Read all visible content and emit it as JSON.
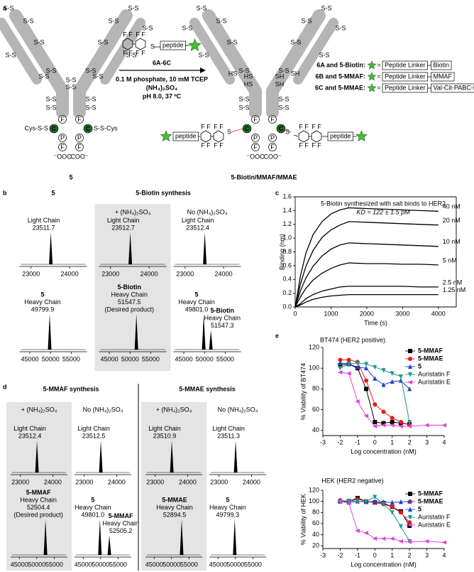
{
  "panel_labels": [
    "a",
    "b",
    "c",
    "d",
    "e"
  ],
  "scheme": {
    "antibody": "5",
    "product": "5-Biotin/MMAF/MMAE",
    "reagent": "6A-6C",
    "conditions": [
      "0.1 M phosphate, 10 mM TCEP",
      "(NH₄)₂SO₄",
      "pH 8.0, 37 ºC"
    ],
    "condition_colors": [
      "#000000",
      "#e8322b",
      "#000000"
    ],
    "peptide": "peptide",
    "fluorine": "F",
    "disulfide": "S-S",
    "sulfur": "S",
    "thiol_left": "HS",
    "thiol_right": "SH",
    "cys_left": "Cys-S-S",
    "cys_right": "S-S-Cys",
    "carboxyl_left": "⁻OOC",
    "carboxyl_right": "COO⁻",
    "residues": {
      "f": "F",
      "p": "P",
      "c": "C"
    },
    "equals": "=",
    "legend": [
      {
        "name": "6A and 5-Biotin:",
        "linker": "Peptide Linker",
        "payload": "Biotin"
      },
      {
        "name": "6B and 5-MMAF:",
        "linker": "Peptide Linker",
        "payload": "MMAF"
      },
      {
        "name": "6C and 5-MMAE:",
        "linker": "Peptide Linker",
        "payload": "Val-Cit-PABC-MMAE"
      }
    ]
  },
  "b": {
    "titles": [
      "5",
      "5-Biotin synthesis"
    ],
    "columns": [
      {
        "shaded": false,
        "spectra": [
          {
            "xlim": [
              22700,
              24450
            ],
            "xticks": [
              23000,
              24000
            ],
            "peaks": [
              {
                "lines": [
                  "Light Chain"
                ],
                "mass": 23511.7,
                "color": "#000000"
              }
            ]
          },
          {
            "xlim": [
              42500,
              58800
            ],
            "xticks": [
              45000,
              50000,
              55000
            ],
            "peaks": [
              {
                "lines": [
                  "5",
                  "Heavy Chain"
                ],
                "mass": 49799.9,
                "color": "#000000"
              }
            ]
          }
        ]
      },
      {
        "shaded": true,
        "condition": "+ (NH₄)₂SO₄",
        "condition_color": "#e8322b",
        "spectra": [
          {
            "xlim": [
              22700,
              24450
            ],
            "xticks": [
              23000,
              24000
            ],
            "peaks": [
              {
                "lines": [
                  "Light Chain"
                ],
                "mass": 23512.7,
                "color": "#e8322b"
              }
            ]
          },
          {
            "xlim": [
              42500,
              58800
            ],
            "xticks": [
              45000,
              50000,
              55000
            ],
            "peaks": [
              {
                "lines": [
                  "5-Biotin",
                  "Heavy Chain"
                ],
                "mass": 51547.5,
                "note": "(Desired product)",
                "color": "#e8322b"
              }
            ]
          }
        ]
      },
      {
        "shaded": false,
        "condition": "No (NH₄)₂SO₄",
        "condition_color": "#000000",
        "spectra": [
          {
            "xlim": [
              22700,
              24450
            ],
            "xticks": [
              23000,
              24000
            ],
            "peaks": [
              {
                "lines": [
                  "Light Chain"
                ],
                "mass": 23512.4,
                "color": "#000000"
              }
            ]
          },
          {
            "xlim": [
              42500,
              58800
            ],
            "xticks": [
              45000,
              50000,
              55000
            ],
            "peaks": [
              {
                "lines": [
                  "5",
                  "Heavy Chain"
                ],
                "mass": 49801.0,
                "mass_label": "49801.0",
                "color": "#000000"
              },
              {
                "lines": [
                  "5-Biotin",
                  "Heavy Chain"
                ],
                "mass": 51547.3,
                "color": "#000000"
              }
            ]
          }
        ]
      }
    ]
  },
  "d": {
    "titles": [
      "5-MMAF synthesis",
      "5-MMAE synthesis"
    ],
    "columns": [
      {
        "shaded": true,
        "condition": "+ (NH₄)₂SO₄",
        "condition_color": "#e8322b",
        "spectra": [
          {
            "xlim": [
              22700,
              24450
            ],
            "xticks": [
              23000,
              24000
            ],
            "peaks": [
              {
                "lines": [
                  "Light Chain"
                ],
                "mass": 23512.4,
                "color": "#e8322b"
              }
            ]
          },
          {
            "xlim": [
              42500,
              58800
            ],
            "xticks": [
              45000,
              50000,
              55000
            ],
            "peaks": [
              {
                "lines": [
                  "5-MMAF",
                  "Heavy Chain"
                ],
                "mass": 52504.4,
                "note": "(Desired product)",
                "color": "#e8322b"
              }
            ]
          }
        ]
      },
      {
        "shaded": false,
        "condition": "No (NH₄)₂SO₄",
        "condition_color": "#000000",
        "spectra": [
          {
            "xlim": [
              22700,
              24450
            ],
            "xticks": [
              23000,
              24000
            ],
            "peaks": [
              {
                "lines": [
                  "Light Chain"
                ],
                "mass": 23512.5,
                "color": "#000000"
              }
            ]
          },
          {
            "xlim": [
              42500,
              58800
            ],
            "xticks": [
              45000,
              50000,
              55000
            ],
            "peaks": [
              {
                "lines": [
                  "5",
                  "Heavy Chain"
                ],
                "mass": 49801.0,
                "mass_label": "49801.0",
                "color": "#000000"
              },
              {
                "lines": [
                  "5-MMAF",
                  "Heavy Chain"
                ],
                "mass": 52505.2,
                "color": "#000000"
              }
            ]
          }
        ]
      },
      {
        "shaded": true,
        "condition": "+ (NH₄)₂SO₄",
        "condition_color": "#e8322b",
        "spectra": [
          {
            "xlim": [
              22700,
              24450
            ],
            "xticks": [
              23000,
              24000
            ],
            "peaks": [
              {
                "lines": [
                  "Light Chain"
                ],
                "mass": 23510.9,
                "color": "#e8322b"
              }
            ]
          },
          {
            "xlim": [
              42500,
              58800
            ],
            "xticks": [
              45000,
              50000,
              55000
            ],
            "peaks": [
              {
                "lines": [
                  "5-MMAE",
                  "Heavy Chain"
                ],
                "mass": 52894.5,
                "color": "#e8322b"
              }
            ]
          }
        ]
      },
      {
        "shaded": false,
        "condition": "No (NH₄)₂SO₄",
        "condition_color": "#000000",
        "spectra": [
          {
            "xlim": [
              22700,
              24450
            ],
            "xticks": [
              23000,
              24000
            ],
            "peaks": [
              {
                "lines": [
                  "Light Chain"
                ],
                "mass": 23511.3,
                "color": "#000000"
              }
            ]
          },
          {
            "xlim": [
              42500,
              58800
            ],
            "xticks": [
              45000,
              50000,
              55000
            ],
            "peaks": [
              {
                "lines": [
                  "5",
                  "Heavy Chain"
                ],
                "mass": 49799.3,
                "color": "#000000"
              }
            ]
          }
        ]
      }
    ]
  },
  "chart_data": [
    {
      "type": "line",
      "x_label": "Time (s)",
      "y_label": "Binding (nm)",
      "annotations": [
        "5-Biotin synthesized with salt binds to HER2",
        "KD = 122 ± 1.5 pM"
      ],
      "x": [
        0,
        150,
        300,
        500,
        750,
        1000,
        1250,
        1500,
        2000,
        2500,
        3000,
        3500,
        4000
      ],
      "xlim": [
        0,
        4500
      ],
      "xticks": [
        0,
        1000,
        2000,
        3000,
        4000
      ],
      "ylim": [
        0,
        1.6
      ],
      "yticks": [
        {
          "value": 0,
          "label": "0.0"
        },
        0.2,
        0.4,
        0.6,
        0.8,
        {
          "value": 1,
          "label": "1.0"
        },
        1.2,
        1.4,
        1.6
      ],
      "frame": true,
      "series_labels": "line-end",
      "series": [
        {
          "name": "40 nM",
          "color": "#000000",
          "values": [
            0,
            0.46,
            0.78,
            1.05,
            1.24,
            1.35,
            1.41,
            1.44,
            1.43,
            1.42,
            1.41,
            1.4,
            1.39
          ]
        },
        {
          "name": "20 nM",
          "color": "#000000",
          "values": [
            0,
            0.34,
            0.59,
            0.82,
            1.01,
            1.12,
            1.19,
            1.24,
            1.23,
            1.22,
            1.21,
            1.2,
            1.19
          ]
        },
        {
          "name": "10 nM",
          "color": "#000000",
          "values": [
            0,
            0.24,
            0.42,
            0.59,
            0.74,
            0.84,
            0.9,
            0.93,
            0.92,
            0.91,
            0.9,
            0.89,
            0.88
          ]
        },
        {
          "name": "5 nM",
          "color": "#000000",
          "values": [
            0,
            0.15,
            0.27,
            0.39,
            0.49,
            0.56,
            0.61,
            0.64,
            0.63,
            0.63,
            0.62,
            0.62,
            0.61
          ]
        },
        {
          "name": "2.5 nM",
          "color": "#000000",
          "values": [
            0,
            0.05,
            0.12,
            0.18,
            0.23,
            0.26,
            0.29,
            0.3,
            0.3,
            0.3,
            0.3,
            0.29,
            0.29
          ]
        },
        {
          "name": "1.25 nM",
          "color": "#000000",
          "values": [
            0,
            0.03,
            0.07,
            0.11,
            0.14,
            0.16,
            0.17,
            0.18,
            0.18,
            0.18,
            0.18,
            0.18,
            0.18
          ]
        }
      ]
    },
    {
      "type": "line",
      "title": "BT474 (HER2 positive)",
      "x_label": "Log concentration (nM)",
      "y_label": "% Viability of BT474",
      "x": [
        -2,
        -1.5,
        -1,
        -0.5,
        0,
        0.5,
        1,
        1.5,
        2,
        3,
        4
      ],
      "xlim": [
        -3,
        4
      ],
      "xticks": [
        -3,
        -2,
        -1,
        0,
        1,
        2,
        3,
        4
      ],
      "ylim": [
        35,
        120
      ],
      "yticks": [
        40,
        60,
        80,
        100,
        120
      ],
      "frame": false,
      "legend": "upper right",
      "series": [
        {
          "name": "5-MMAF",
          "color": "#000000",
          "marker": "square",
          "values": [
            103,
            104,
            100,
            80,
            48,
            47,
            48,
            47,
            46,
            null,
            null
          ]
        },
        {
          "name": "5-MMAE",
          "color": "#e31a1c",
          "marker": "circle",
          "values": [
            108,
            108,
            106,
            88,
            65,
            58,
            52,
            48,
            45,
            null,
            null
          ]
        },
        {
          "name": "5",
          "color": "#1f3fcf",
          "marker": "triangle-up",
          "values": [
            105,
            104,
            101,
            100,
            90,
            84,
            87,
            88,
            80,
            null,
            null
          ]
        },
        {
          "name": "Auristatin F",
          "color": "#1a9a8a",
          "marker": "triangle-down",
          "values": [
            100,
            104,
            105,
            104,
            101,
            98,
            95,
            92,
            48,
            null,
            null
          ]
        },
        {
          "name": "Auristatin E",
          "color": "#e040e0",
          "marker": "triangle-left",
          "values": [
            96,
            95,
            68,
            54,
            44,
            45,
            45,
            44,
            44,
            45,
            45
          ]
        }
      ]
    },
    {
      "type": "line",
      "title": "HEK (HER2 negative)",
      "x_label": "Log concentration (nM)",
      "y_label": "% Viability of HEK",
      "x": [
        -2,
        -1.5,
        -1,
        -0.5,
        0,
        0.5,
        1,
        1.5,
        2,
        3,
        4
      ],
      "xlim": [
        -3,
        4
      ],
      "xticks": [
        -3,
        -2,
        -1,
        0,
        1,
        2,
        3,
        4
      ],
      "ylim": [
        15,
        120
      ],
      "yticks": [
        20,
        40,
        60,
        80,
        100,
        120
      ],
      "frame": false,
      "legend": "upper right",
      "series": [
        {
          "name": "5-MMAF",
          "color": "#000000",
          "marker": "square",
          "values": [
            100,
            100,
            106,
            100,
            98,
            97,
            90,
            82,
            56,
            null,
            null
          ]
        },
        {
          "name": "5-MMAE",
          "color": "#e31a1c",
          "marker": "circle",
          "values": [
            102,
            100,
            104,
            100,
            98,
            95,
            90,
            80,
            62,
            null,
            null
          ]
        },
        {
          "name": "5",
          "color": "#1f3fcf",
          "marker": "triangle-up",
          "values": [
            100,
            98,
            100,
            99,
            100,
            99,
            98,
            99,
            100,
            null,
            null
          ]
        },
        {
          "name": "Auristatin F",
          "color": "#1a9a8a",
          "marker": "triangle-down",
          "values": [
            100,
            101,
            100,
            100,
            108,
            95,
            80,
            55,
            28,
            null,
            null
          ]
        },
        {
          "name": "Auristatin E",
          "color": "#e040e0",
          "marker": "triangle-left",
          "values": [
            100,
            97,
            47,
            43,
            33,
            33,
            33,
            28,
            27,
            28,
            26
          ]
        }
      ]
    }
  ]
}
